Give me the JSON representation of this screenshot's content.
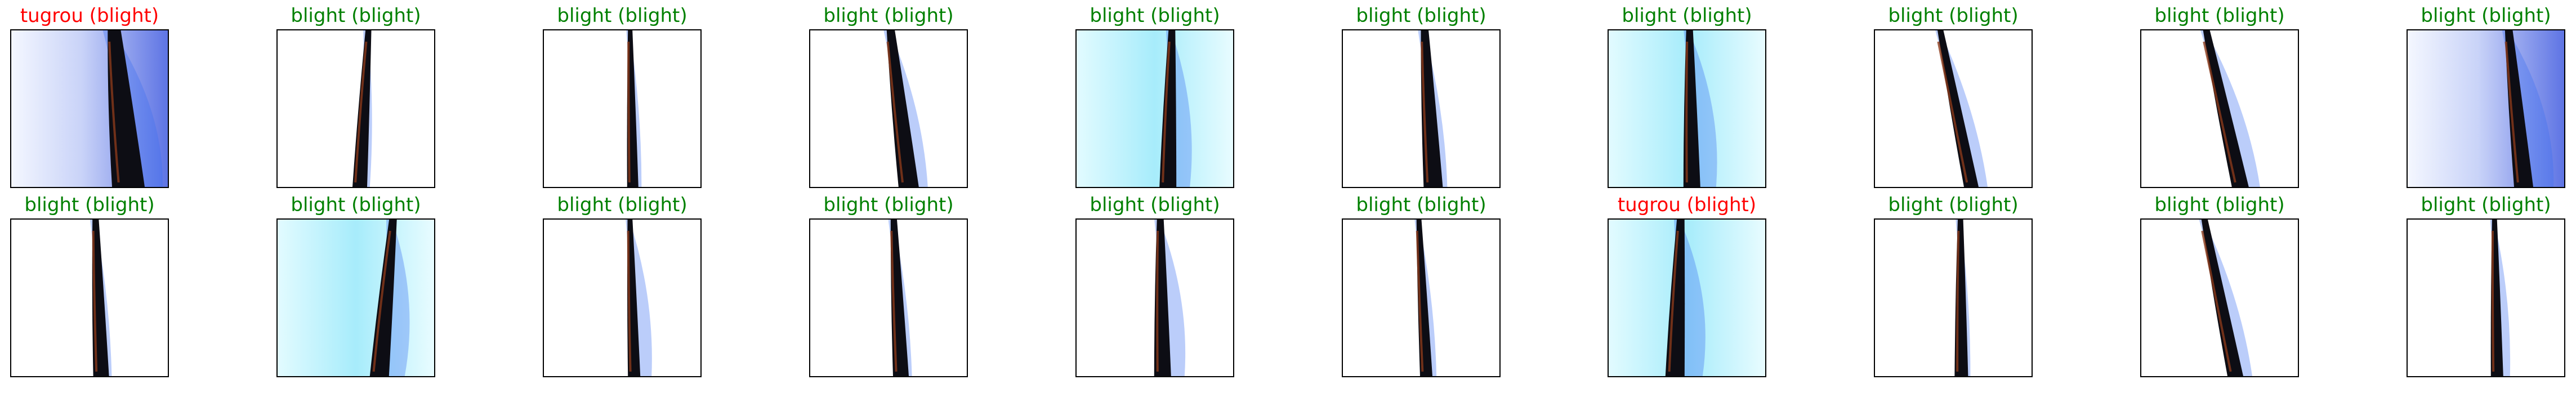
{
  "colors": {
    "correct": "#008000",
    "incorrect": "#ff0000",
    "frame": "#000000",
    "background": "#ffffff"
  },
  "panels": [
    {
      "title": "tugrou (blight)",
      "status": "incorrect",
      "style": "blue-bg"
    },
    {
      "title": "blight (blight)",
      "status": "correct",
      "style": "white-bg"
    },
    {
      "title": "blight (blight)",
      "status": "correct",
      "style": "white-bg"
    },
    {
      "title": "blight (blight)",
      "status": "correct",
      "style": "white-bg"
    },
    {
      "title": "blight (blight)",
      "status": "correct",
      "style": "cyan-bg"
    },
    {
      "title": "blight (blight)",
      "status": "correct",
      "style": "white-bg"
    },
    {
      "title": "blight (blight)",
      "status": "correct",
      "style": "cyan-bg"
    },
    {
      "title": "blight (blight)",
      "status": "correct",
      "style": "white-bg"
    },
    {
      "title": "blight (blight)",
      "status": "correct",
      "style": "white-bg"
    },
    {
      "title": "blight (blight)",
      "status": "correct",
      "style": "blue-bg"
    },
    {
      "title": "blight (blight)",
      "status": "correct",
      "style": "white-bg"
    },
    {
      "title": "blight (blight)",
      "status": "correct",
      "style": "cyan-bg"
    },
    {
      "title": "blight (blight)",
      "status": "correct",
      "style": "white-bg"
    },
    {
      "title": "blight (blight)",
      "status": "correct",
      "style": "white-bg"
    },
    {
      "title": "blight (blight)",
      "status": "correct",
      "style": "white-bg"
    },
    {
      "title": "blight (blight)",
      "status": "correct",
      "style": "white-bg"
    },
    {
      "title": "tugrou (blight)",
      "status": "incorrect",
      "style": "cyan-bg"
    },
    {
      "title": "blight (blight)",
      "status": "correct",
      "style": "white-bg"
    },
    {
      "title": "blight (blight)",
      "status": "correct",
      "style": "white-bg"
    },
    {
      "title": "blight (blight)",
      "status": "correct",
      "style": "white-bg"
    }
  ]
}
